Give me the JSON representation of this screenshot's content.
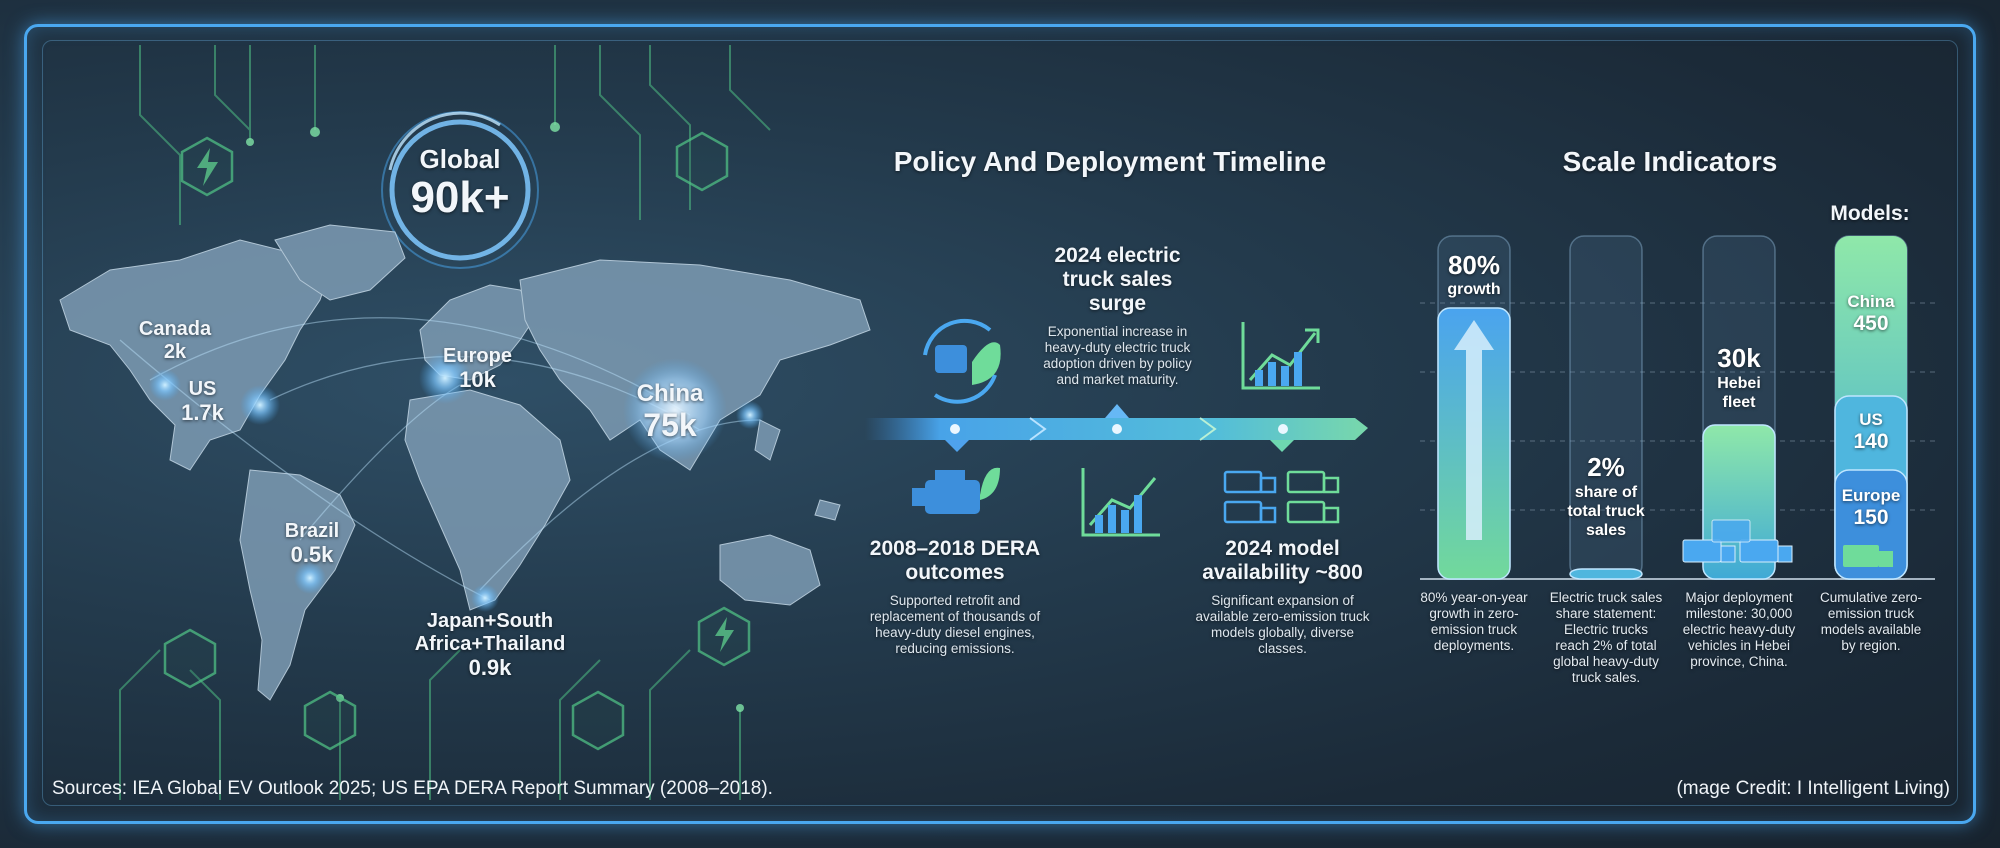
{
  "map": {
    "global_label": "Global",
    "global_value": "90k+",
    "regions": [
      {
        "name": "Canada",
        "value": "2k"
      },
      {
        "name": "US",
        "value": "1.7k"
      },
      {
        "name": "Europe",
        "value": "10k"
      },
      {
        "name": "China",
        "value": "75k"
      },
      {
        "name": "Brazil",
        "value": "0.5k"
      },
      {
        "name": "Japan+South Africa+Thailand",
        "value": "0.9k"
      }
    ]
  },
  "timeline": {
    "title": "Policy And Deployment Timeline",
    "top_event": {
      "title": "2024 electric truck sales surge",
      "desc": "Exponential increase in heavy-duty electric truck adoption driven by policy and market maturity."
    },
    "left_event": {
      "title": "2008–2018 DERA outcomes",
      "desc": "Supported retrofit and replacement of thousands of heavy-duty diesel engines, reducing emissions."
    },
    "right_event": {
      "title": "2024 model availability ~800",
      "desc": "Significant expansion of available zero-emission truck models globally, diverse classes."
    }
  },
  "scale": {
    "title": "Scale Indicators",
    "models_heading": "Models:",
    "bars": [
      {
        "value": "80%",
        "label": "growth",
        "fill_fraction": 0.79,
        "caption": "80% year-on-year growth in zero-emission truck deployments."
      },
      {
        "value": "2%",
        "label": "share of total truck sales",
        "fill_fraction": 0.02,
        "caption": "Electric truck sales share statement: Electric trucks reach 2% of total global heavy-duty truck sales."
      },
      {
        "value": "30k",
        "label": "Hebei fleet",
        "fill_fraction": 0.45,
        "caption": "Major deployment milestone: 30,000 electric heavy-duty vehicles in Hebei province, China."
      }
    ],
    "models": {
      "segments": [
        {
          "region": "China",
          "value": "450"
        },
        {
          "region": "US",
          "value": "140"
        },
        {
          "region": "Europe",
          "value": "150"
        }
      ],
      "caption": "Cumulative zero-emission truck models available by region."
    }
  },
  "footer": {
    "sources": "Sources: IEA Global EV Outlook 2025; US EPA DERA Report Summary (2008–2018).",
    "credit": "(mage Credit: I Intelligent Living)"
  },
  "colors": {
    "accent_blue": "#4aa8f0",
    "accent_green": "#6fdc9a",
    "frame": "#4aa8f0"
  }
}
